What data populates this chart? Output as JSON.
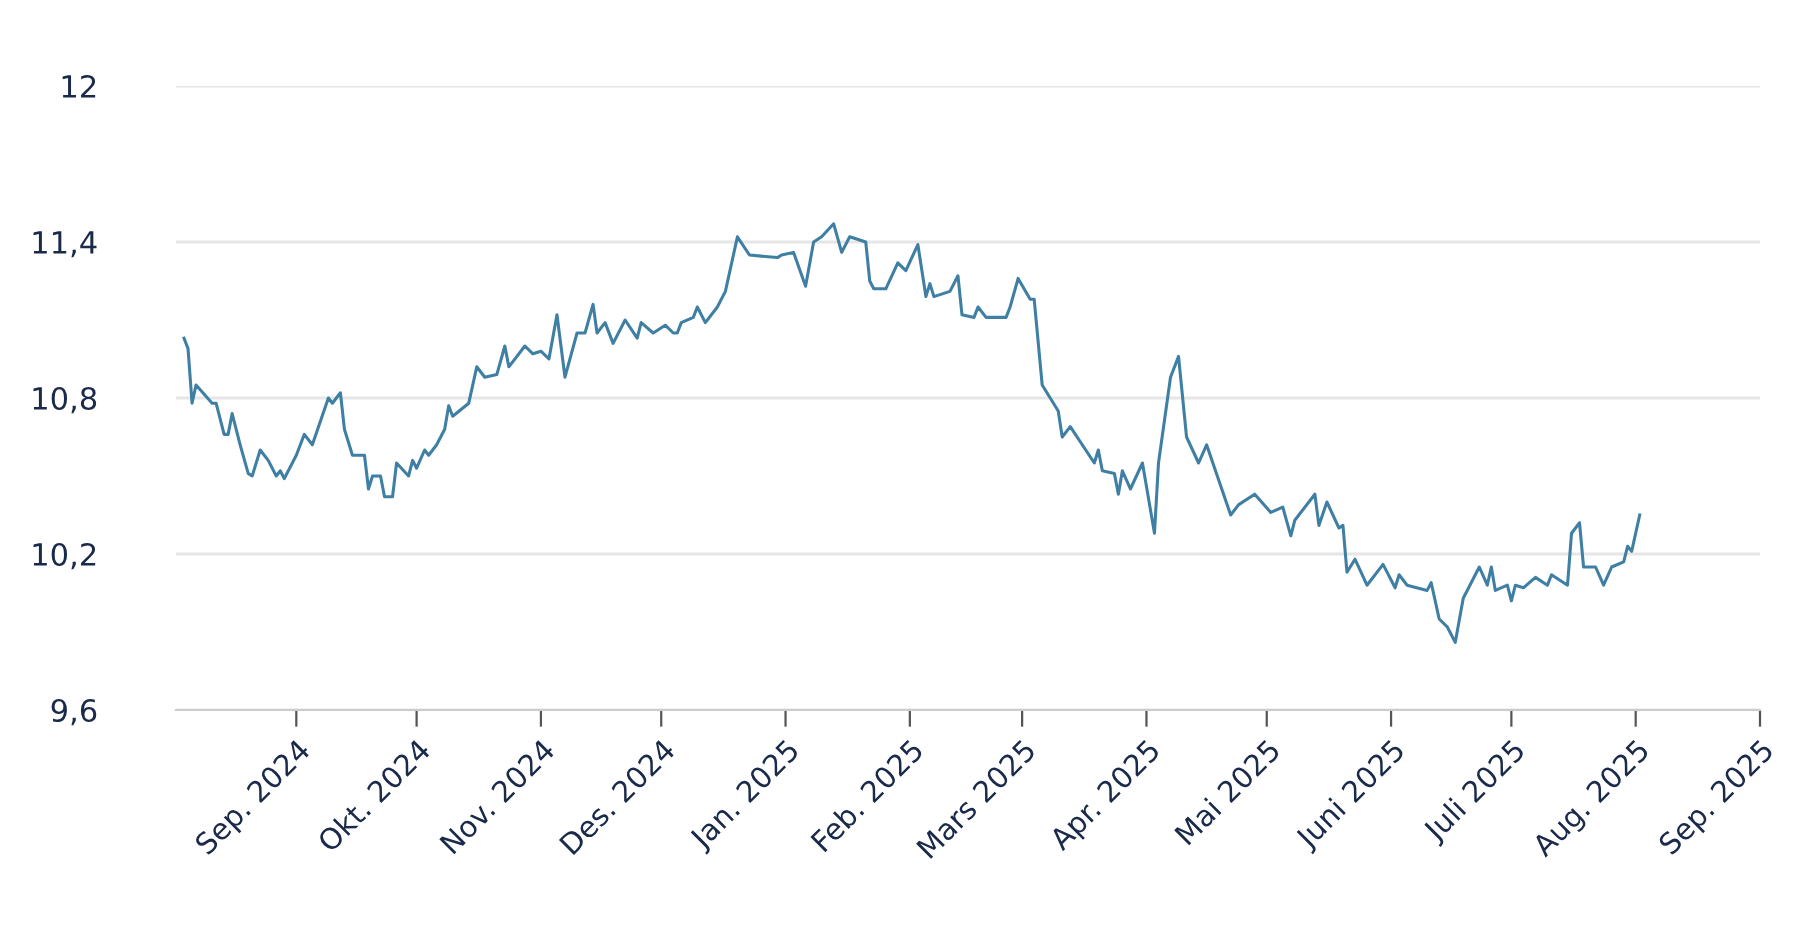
{
  "chart_data": {
    "type": "line",
    "color": "#3f7fa3",
    "grid": "y",
    "line_style": "solid",
    "marker": "none",
    "x": [
      "2024-08-04",
      "2024-08-05",
      "2024-08-06",
      "2024-08-07",
      "2024-08-11",
      "2024-08-12",
      "2024-08-14",
      "2024-08-15",
      "2024-08-16",
      "2024-08-18",
      "2024-08-20",
      "2024-08-21",
      "2024-08-23",
      "2024-08-25",
      "2024-08-27",
      "2024-08-28",
      "2024-08-29",
      "2024-09-01",
      "2024-09-03",
      "2024-09-05",
      "2024-09-09",
      "2024-09-10",
      "2024-09-12",
      "2024-09-13",
      "2024-09-15",
      "2024-09-18",
      "2024-09-19",
      "2024-09-20",
      "2024-09-22",
      "2024-09-23",
      "2024-09-25",
      "2024-09-26",
      "2024-09-29",
      "2024-09-30",
      "2024-10-01",
      "2024-10-03",
      "2024-10-04",
      "2024-10-06",
      "2024-10-08",
      "2024-10-09",
      "2024-10-10",
      "2024-10-14",
      "2024-10-16",
      "2024-10-18",
      "2024-10-21",
      "2024-10-23",
      "2024-10-24",
      "2024-10-28",
      "2024-10-30",
      "2024-11-01",
      "2024-11-03",
      "2024-11-05",
      "2024-11-07",
      "2024-11-10",
      "2024-11-12",
      "2024-11-14",
      "2024-11-15",
      "2024-11-17",
      "2024-11-19",
      "2024-11-22",
      "2024-11-25",
      "2024-11-26",
      "2024-11-29",
      "2024-12-02",
      "2024-12-04",
      "2024-12-05",
      "2024-12-06",
      "2024-12-09",
      "2024-12-10",
      "2024-12-12",
      "2024-12-15",
      "2024-12-17",
      "2024-12-20",
      "2024-12-23",
      "2024-12-30",
      "2024-12-31",
      "2025-01-03",
      "2025-01-06",
      "2025-01-08",
      "2025-01-10",
      "2025-01-13",
      "2025-01-15",
      "2025-01-17",
      "2025-01-21",
      "2025-01-22",
      "2025-01-23",
      "2025-01-26",
      "2025-01-29",
      "2025-01-31",
      "2025-02-03",
      "2025-02-05",
      "2025-02-06",
      "2025-02-07",
      "2025-02-11",
      "2025-02-13",
      "2025-02-14",
      "2025-02-17",
      "2025-02-18",
      "2025-02-20",
      "2025-02-25",
      "2025-02-26",
      "2025-02-28",
      "2025-03-03",
      "2025-03-04",
      "2025-03-06",
      "2025-03-10",
      "2025-03-11",
      "2025-03-13",
      "2025-03-19",
      "2025-03-20",
      "2025-03-21",
      "2025-03-24",
      "2025-03-25",
      "2025-03-26",
      "2025-03-28",
      "2025-03-31",
      "2025-04-03",
      "2025-04-04",
      "2025-04-07",
      "2025-04-09",
      "2025-04-11",
      "2025-04-14",
      "2025-04-16",
      "2025-04-22",
      "2025-04-24",
      "2025-04-28",
      "2025-05-02",
      "2025-05-05",
      "2025-05-07",
      "2025-05-08",
      "2025-05-13",
      "2025-05-14",
      "2025-05-16",
      "2025-05-19",
      "2025-05-20",
      "2025-05-21",
      "2025-05-23",
      "2025-05-26",
      "2025-05-30",
      "2025-06-02",
      "2025-06-03",
      "2025-06-05",
      "2025-06-10",
      "2025-06-11",
      "2025-06-13",
      "2025-06-15",
      "2025-06-17",
      "2025-06-19",
      "2025-06-23",
      "2025-06-25",
      "2025-06-26",
      "2025-06-27",
      "2025-06-30",
      "2025-07-01",
      "2025-07-02",
      "2025-07-04",
      "2025-07-07",
      "2025-07-10",
      "2025-07-11",
      "2025-07-15",
      "2025-07-16",
      "2025-07-18",
      "2025-07-19",
      "2025-07-22",
      "2025-07-24",
      "2025-07-26",
      "2025-07-29",
      "2025-07-30",
      "2025-07-31",
      "2025-08-02"
    ],
    "values": [
      11.03,
      10.99,
      10.78,
      10.85,
      10.78,
      10.78,
      10.66,
      10.66,
      10.74,
      10.62,
      10.51,
      10.5,
      10.6,
      10.56,
      10.5,
      10.52,
      10.49,
      10.58,
      10.66,
      10.62,
      10.8,
      10.78,
      10.82,
      10.68,
      10.58,
      10.58,
      10.45,
      10.5,
      10.5,
      10.42,
      10.42,
      10.55,
      10.5,
      10.56,
      10.53,
      10.6,
      10.58,
      10.62,
      10.68,
      10.77,
      10.73,
      10.78,
      10.92,
      10.88,
      10.89,
      11.0,
      10.92,
      11.0,
      10.97,
      10.98,
      10.95,
      11.12,
      10.88,
      11.05,
      11.05,
      11.16,
      11.05,
      11.09,
      11.01,
      11.1,
      11.03,
      11.09,
      11.05,
      11.08,
      11.05,
      11.05,
      11.09,
      11.11,
      11.15,
      11.09,
      11.15,
      11.21,
      11.42,
      11.35,
      11.34,
      11.35,
      11.36,
      11.23,
      11.4,
      11.42,
      11.47,
      11.36,
      11.42,
      11.4,
      11.25,
      11.22,
      11.22,
      11.32,
      11.29,
      11.39,
      11.19,
      11.24,
      11.19,
      11.21,
      11.27,
      11.12,
      11.11,
      11.15,
      11.11,
      11.11,
      11.15,
      11.26,
      11.18,
      11.18,
      10.85,
      10.75,
      10.65,
      10.69,
      10.55,
      10.6,
      10.52,
      10.51,
      10.43,
      10.52,
      10.45,
      10.55,
      10.28,
      10.55,
      10.88,
      10.96,
      10.65,
      10.55,
      10.62,
      10.35,
      10.39,
      10.43,
      10.36,
      10.38,
      10.27,
      10.33,
      10.43,
      10.31,
      10.4,
      10.3,
      10.31,
      10.13,
      10.18,
      10.08,
      10.16,
      10.07,
      10.12,
      10.08,
      10.06,
      10.09,
      9.95,
      9.92,
      9.86,
      10.03,
      10.15,
      10.08,
      10.15,
      10.06,
      10.08,
      10.02,
      10.08,
      10.07,
      10.11,
      10.08,
      10.12,
      10.08,
      10.28,
      10.32,
      10.15,
      10.15,
      10.08,
      10.15,
      10.17,
      10.23,
      10.21,
      10.35
    ],
    "xlim": [
      "2024-08-02",
      "2025-09-01"
    ],
    "xticks": [
      {
        "value": "2024-09-01",
        "label": "Sep. 2024"
      },
      {
        "value": "2024-10-01",
        "label": "Okt. 2024"
      },
      {
        "value": "2024-11-01",
        "label": "Nov. 2024"
      },
      {
        "value": "2024-12-01",
        "label": "Des. 2024"
      },
      {
        "value": "2025-01-01",
        "label": "Jan. 2025"
      },
      {
        "value": "2025-02-01",
        "label": "Feb. 2025"
      },
      {
        "value": "2025-03-01",
        "label": "Mars 2025"
      },
      {
        "value": "2025-04-01",
        "label": "Apr. 2025"
      },
      {
        "value": "2025-05-01",
        "label": "Mai 2025"
      },
      {
        "value": "2025-06-01",
        "label": "Juni 2025"
      },
      {
        "value": "2025-07-01",
        "label": "Juli 2025"
      },
      {
        "value": "2025-08-01",
        "label": "Aug. 2025"
      },
      {
        "value": "2025-09-01",
        "label": "Sep. 2025"
      }
    ],
    "ylim": [
      9.6,
      12
    ],
    "yticks": [
      {
        "value": 9.6,
        "label": "9,6"
      },
      {
        "value": 10.2,
        "label": "10,2"
      },
      {
        "value": 10.8,
        "label": "10,8"
      },
      {
        "value": 11.4,
        "label": "11,4"
      },
      12
    ]
  }
}
